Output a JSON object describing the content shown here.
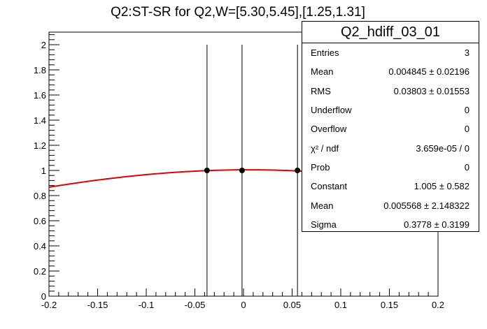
{
  "title": "Q2:ST-SR for Q2,W=[5.30,5.45],[1.25,1.31]",
  "colors": {
    "fit": "#dd0000",
    "points": "#000000",
    "axis": "#000000",
    "background": "#ffffff"
  },
  "stats": {
    "name": "Q2_hdiff_03_01",
    "rows": [
      {
        "key": "Entries",
        "value": "3"
      },
      {
        "key": "Mean",
        "value": "0.004845 ± 0.02196"
      },
      {
        "key": "RMS",
        "value": "0.03803 ± 0.01553"
      },
      {
        "key": "Underflow",
        "value": "0"
      },
      {
        "key": "Overflow",
        "value": "0"
      },
      {
        "key": "χ² / ndf",
        "value": "3.659e-05 / 0"
      },
      {
        "key": "Prob",
        "value": "0"
      },
      {
        "key": "Constant",
        "value": "1.005 ± 0.582"
      },
      {
        "key": "Mean",
        "value": "0.005568 ± 2.148322"
      },
      {
        "key": "Sigma",
        "value": "0.3778 ± 0.3199"
      }
    ]
  },
  "chart_data": {
    "type": "scatter",
    "xlim": [
      -0.2,
      0.2
    ],
    "ylim": [
      0,
      2.1
    ],
    "x_ticks": [
      -0.2,
      -0.15,
      -0.1,
      -0.05,
      0,
      0.05,
      0.1,
      0.15,
      0.2
    ],
    "x_tick_labels": [
      "-0.2",
      "-0.15",
      "-0.1",
      "-0.05",
      "0",
      "0.05",
      "0.1",
      "0.15",
      "0.2"
    ],
    "y_ticks": [
      0,
      0.2,
      0.4,
      0.6,
      0.8,
      1,
      1.2,
      1.4,
      1.6,
      1.8,
      2
    ],
    "y_tick_labels": [
      "0",
      "0.2",
      "0.4",
      "0.6",
      "0.8",
      "1",
      "1.2",
      "1.4",
      "1.6",
      "1.8",
      "2"
    ],
    "points": [
      {
        "x": -0.0375,
        "y": 1.0,
        "yerr": 1.0
      },
      {
        "x": -0.0015,
        "y": 1.0,
        "yerr": 1.0
      },
      {
        "x": 0.0555,
        "y": 1.0,
        "yerr": 1.0
      }
    ],
    "fit": {
      "function": "gaus",
      "constant": 1.005,
      "mean": 0.005568,
      "sigma": 0.3778
    }
  }
}
